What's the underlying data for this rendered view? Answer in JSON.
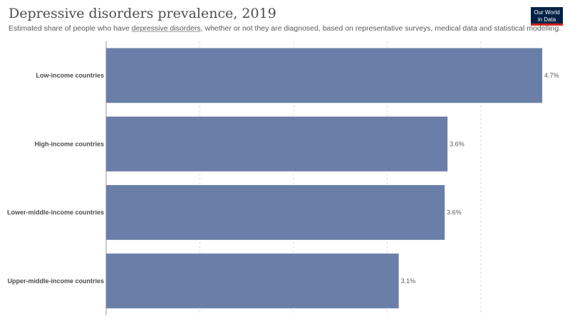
{
  "header": {
    "title": "Depressive disorders prevalence, 2019",
    "subtitle_pre": "Estimated share of people who have ",
    "subtitle_link": "depressive disorders",
    "subtitle_post": ", whether or not they are diagnosed, based on representative surveys, medical data and statistical modelling."
  },
  "logo": {
    "line1": "Our World",
    "line2": "in Data",
    "bg_color": "#002147",
    "accent_color": "#ce261e"
  },
  "chart_data": {
    "type": "bar",
    "orientation": "horizontal",
    "categories": [
      "Low-income countries",
      "High-income countries",
      "Lower-middle-income countries",
      "Upper-middle-income countries"
    ],
    "values": [
      4.65,
      3.64,
      3.61,
      3.12
    ],
    "value_labels": [
      "4.7%",
      "3.6%",
      "3.6%",
      "3.1%"
    ],
    "unit": "%",
    "xlim": [
      0,
      4.65
    ],
    "grid": true,
    "bar_color": "#6a7fa8"
  }
}
